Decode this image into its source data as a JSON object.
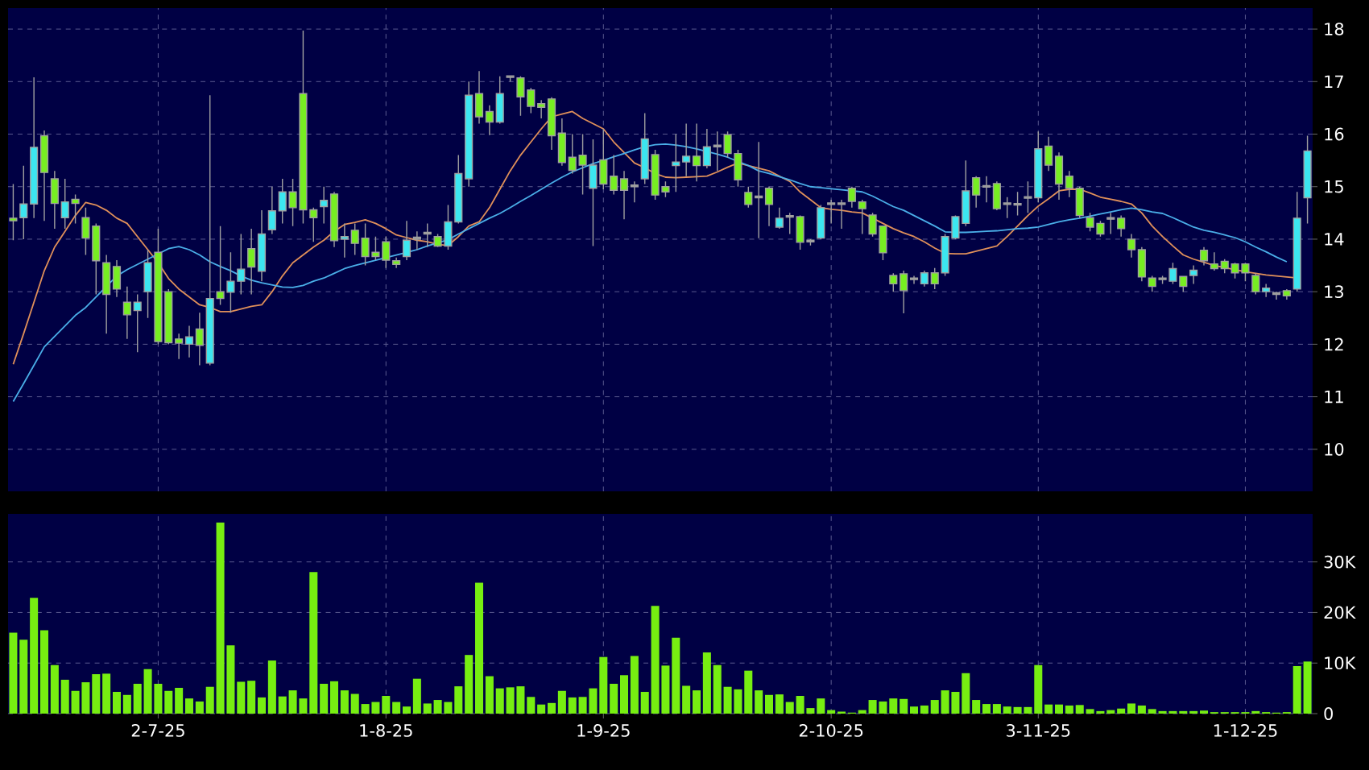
{
  "chart_data": [
    {
      "type": "candlestick",
      "categories": [
        null,
        null,
        null,
        null,
        null,
        null,
        null,
        null,
        null,
        null,
        null,
        null,
        null,
        null,
        null,
        null,
        null,
        null,
        null,
        null,
        null,
        null,
        null,
        null,
        null,
        null,
        null,
        null,
        null,
        null,
        null,
        null,
        null,
        null,
        null,
        null,
        null,
        null,
        null,
        null,
        null,
        null,
        null,
        null,
        null,
        null,
        null,
        null,
        null,
        null,
        null,
        null,
        null,
        null,
        null,
        null,
        null,
        null,
        null,
        null,
        null,
        null,
        null,
        null,
        null,
        null,
        null,
        null,
        null,
        null,
        null,
        null,
        null,
        null,
        null,
        null,
        null,
        null,
        null,
        null,
        null,
        null,
        null,
        null,
        null,
        null,
        null,
        null,
        null,
        null,
        null,
        null,
        null,
        null,
        null,
        null,
        null,
        null,
        null,
        null,
        null,
        null,
        null,
        null,
        null,
        null,
        null,
        null,
        null,
        null,
        null,
        null,
        null,
        null,
        null,
        null,
        null,
        null,
        null,
        null,
        null,
        null,
        null,
        null,
        null,
        null
      ],
      "ohlc": [
        [
          14.4,
          15.05,
          13.98,
          14.35
        ],
        [
          14.41,
          15.4,
          14.0,
          14.67
        ],
        [
          14.67,
          17.08,
          14.4,
          15.75
        ],
        [
          15.97,
          16.07,
          14.35,
          15.27
        ],
        [
          15.15,
          15.3,
          14.2,
          14.68
        ],
        [
          14.41,
          15.15,
          14.2,
          14.71
        ],
        [
          14.76,
          14.85,
          14.3,
          14.68
        ],
        [
          14.41,
          14.6,
          13.7,
          14.02
        ],
        [
          14.25,
          14.3,
          12.95,
          13.59
        ],
        [
          13.55,
          13.7,
          12.2,
          12.95
        ],
        [
          13.48,
          13.6,
          12.9,
          13.05
        ],
        [
          12.8,
          13.1,
          12.1,
          12.56
        ],
        [
          12.64,
          12.95,
          11.85,
          12.8
        ],
        [
          13.0,
          13.8,
          12.5,
          13.55
        ],
        [
          13.75,
          14.2,
          12.0,
          12.05
        ],
        [
          13.0,
          13.05,
          12.0,
          12.03
        ],
        [
          12.1,
          12.2,
          11.72,
          12.02
        ],
        [
          12.0,
          12.35,
          11.75,
          12.14
        ],
        [
          12.29,
          12.6,
          11.6,
          11.98
        ],
        [
          11.64,
          16.74,
          11.6,
          12.87
        ],
        [
          13.0,
          14.25,
          12.75,
          12.87
        ],
        [
          12.99,
          13.75,
          12.6,
          13.2
        ],
        [
          13.2,
          14.1,
          12.95,
          13.43
        ],
        [
          13.82,
          14.2,
          12.95,
          13.47
        ],
        [
          13.39,
          14.55,
          13.2,
          14.1
        ],
        [
          14.18,
          15.0,
          14.1,
          14.54
        ],
        [
          14.54,
          15.15,
          14.3,
          14.9
        ],
        [
          14.9,
          15.15,
          14.25,
          14.6
        ],
        [
          16.77,
          17.97,
          14.3,
          14.56
        ],
        [
          14.56,
          14.6,
          13.95,
          14.41
        ],
        [
          14.62,
          15.0,
          14.3,
          14.74
        ],
        [
          14.86,
          14.9,
          13.85,
          13.97
        ],
        [
          14.0,
          14.3,
          13.65,
          14.05
        ],
        [
          14.17,
          14.3,
          13.7,
          13.92
        ],
        [
          14.02,
          14.3,
          13.5,
          13.67
        ],
        [
          13.75,
          14.05,
          13.6,
          13.67
        ],
        [
          13.95,
          14.05,
          13.45,
          13.6
        ],
        [
          13.59,
          13.65,
          13.45,
          13.52
        ],
        [
          13.67,
          14.35,
          13.6,
          13.98
        ],
        [
          14.0,
          14.15,
          13.8,
          14.04
        ],
        [
          14.1,
          14.3,
          13.85,
          14.13
        ],
        [
          14.05,
          14.1,
          13.85,
          13.87
        ],
        [
          13.87,
          14.65,
          13.8,
          14.33
        ],
        [
          14.33,
          15.6,
          14.3,
          15.25
        ],
        [
          15.15,
          17.0,
          15.0,
          16.74
        ],
        [
          16.77,
          17.2,
          16.2,
          16.33
        ],
        [
          16.43,
          16.55,
          15.98,
          16.23
        ],
        [
          16.23,
          17.1,
          16.2,
          16.77
        ],
        [
          17.08,
          17.12,
          17.0,
          17.11
        ],
        [
          17.07,
          17.1,
          16.35,
          16.71
        ],
        [
          16.84,
          16.88,
          16.4,
          16.53
        ],
        [
          16.58,
          16.65,
          16.3,
          16.51
        ],
        [
          16.67,
          16.7,
          15.7,
          15.97
        ],
        [
          16.02,
          16.3,
          15.4,
          15.46
        ],
        [
          15.56,
          16.0,
          15.25,
          15.31
        ],
        [
          15.6,
          16.0,
          14.85,
          15.41
        ],
        [
          14.97,
          15.9,
          13.87,
          15.41
        ],
        [
          15.51,
          16.1,
          14.95,
          15.05
        ],
        [
          15.2,
          15.6,
          14.85,
          14.93
        ],
        [
          15.15,
          15.3,
          14.38,
          14.93
        ],
        [
          15.0,
          15.1,
          14.7,
          15.03
        ],
        [
          15.15,
          16.4,
          15.05,
          15.91
        ],
        [
          15.61,
          15.7,
          14.75,
          14.84
        ],
        [
          15.0,
          15.1,
          14.8,
          14.9
        ],
        [
          15.4,
          16.0,
          14.9,
          15.47
        ],
        [
          15.47,
          16.2,
          15.2,
          15.58
        ],
        [
          15.58,
          16.2,
          15.1,
          15.4
        ],
        [
          15.4,
          16.1,
          15.35,
          15.76
        ],
        [
          15.76,
          16.05,
          15.3,
          15.79
        ],
        [
          15.99,
          16.05,
          15.55,
          15.63
        ],
        [
          15.63,
          15.7,
          15.0,
          15.13
        ],
        [
          14.89,
          15.0,
          14.6,
          14.66
        ],
        [
          14.79,
          15.85,
          14.02,
          14.82
        ],
        [
          14.97,
          15.0,
          14.25,
          14.66
        ],
        [
          14.23,
          14.6,
          14.2,
          14.4
        ],
        [
          14.42,
          14.5,
          14.1,
          14.45
        ],
        [
          14.43,
          14.45,
          13.8,
          13.94
        ],
        [
          13.95,
          14.0,
          13.88,
          13.98
        ],
        [
          14.02,
          14.65,
          14.0,
          14.6
        ],
        [
          14.66,
          14.75,
          14.3,
          14.69
        ],
        [
          14.66,
          14.75,
          14.2,
          14.69
        ],
        [
          14.97,
          15.0,
          14.6,
          14.72
        ],
        [
          14.71,
          14.75,
          14.1,
          14.58
        ],
        [
          14.46,
          14.5,
          14.05,
          14.1
        ],
        [
          14.25,
          14.25,
          13.6,
          13.74
        ],
        [
          13.31,
          13.35,
          13.0,
          13.15
        ],
        [
          13.34,
          13.4,
          12.59,
          13.02
        ],
        [
          13.23,
          13.3,
          13.15,
          13.26
        ],
        [
          13.15,
          13.4,
          13.1,
          13.36
        ],
        [
          13.36,
          13.45,
          13.05,
          13.15
        ],
        [
          13.36,
          14.1,
          13.3,
          14.05
        ],
        [
          14.02,
          14.45,
          14.0,
          14.43
        ],
        [
          14.3,
          15.5,
          14.25,
          14.92
        ],
        [
          15.17,
          15.2,
          14.6,
          14.84
        ],
        [
          14.99,
          15.2,
          14.7,
          15.02
        ],
        [
          15.06,
          15.1,
          14.55,
          14.58
        ],
        [
          14.66,
          14.8,
          14.4,
          14.69
        ],
        [
          14.65,
          14.9,
          14.45,
          14.68
        ],
        [
          14.78,
          15.1,
          14.5,
          14.81
        ],
        [
          14.79,
          16.05,
          14.7,
          15.72
        ],
        [
          15.77,
          15.95,
          15.3,
          15.41
        ],
        [
          15.58,
          15.65,
          14.75,
          15.05
        ],
        [
          15.2,
          15.3,
          14.8,
          14.97
        ],
        [
          14.97,
          15.0,
          14.4,
          14.45
        ],
        [
          14.41,
          14.5,
          14.15,
          14.23
        ],
        [
          14.3,
          14.35,
          14.05,
          14.1
        ],
        [
          14.38,
          14.5,
          14.1,
          14.41
        ],
        [
          14.4,
          14.45,
          14.05,
          14.2
        ],
        [
          14.0,
          14.1,
          13.65,
          13.8
        ],
        [
          13.8,
          13.85,
          13.2,
          13.28
        ],
        [
          13.26,
          13.3,
          13.0,
          13.1
        ],
        [
          13.23,
          13.3,
          13.15,
          13.26
        ],
        [
          13.2,
          13.55,
          13.15,
          13.44
        ],
        [
          13.29,
          13.3,
          13.0,
          13.1
        ],
        [
          13.31,
          13.5,
          13.15,
          13.41
        ],
        [
          13.79,
          13.85,
          13.5,
          13.59
        ],
        [
          13.53,
          13.75,
          13.4,
          13.44
        ],
        [
          13.58,
          13.62,
          13.35,
          13.44
        ],
        [
          13.53,
          13.55,
          13.25,
          13.36
        ],
        [
          13.53,
          13.55,
          13.2,
          13.36
        ],
        [
          13.31,
          13.35,
          12.95,
          13.0
        ],
        [
          13.0,
          13.15,
          12.9,
          13.07
        ],
        [
          12.95,
          13.0,
          12.85,
          12.98
        ],
        [
          13.02,
          13.05,
          12.85,
          12.92
        ],
        [
          13.05,
          14.9,
          13.0,
          14.4
        ],
        [
          14.79,
          15.97,
          14.3,
          15.68
        ]
      ],
      "colors": [
        "#77ee22",
        "#3ce6f0",
        "#3ce6f0",
        "#77ee22",
        "#77ee22",
        "#3ce6f0",
        "#77ee22",
        "#77ee22",
        "#77ee22",
        "#77ee22",
        "#77ee22",
        "#77ee22",
        "#3ce6f0",
        "#3ce6f0",
        "#77ee22",
        "#77ee22",
        "#77ee22",
        "#3ce6f0",
        "#77ee22",
        "#3ce6f0",
        "#77ee22",
        "#3ce6f0",
        "#3ce6f0",
        "#77ee22",
        "#3ce6f0",
        "#3ce6f0",
        "#3ce6f0",
        "#77ee22",
        "#77ee22",
        "#77ee22",
        "#3ce6f0",
        "#77ee22",
        "#3ce6f0",
        "#77ee22",
        "#77ee22",
        "#77ee22",
        "#77ee22",
        "#77ee22",
        "#3ce6f0",
        "#9a9a9a",
        "#9a9a9a",
        "#77ee22",
        "#3ce6f0",
        "#3ce6f0",
        "#3ce6f0",
        "#77ee22",
        "#77ee22",
        "#3ce6f0",
        "#9a9a9a",
        "#77ee22",
        "#77ee22",
        "#77ee22",
        "#77ee22",
        "#77ee22",
        "#77ee22",
        "#77ee22",
        "#3ce6f0",
        "#77ee22",
        "#77ee22",
        "#77ee22",
        "#9a9a9a",
        "#3ce6f0",
        "#77ee22",
        "#77ee22",
        "#3ce6f0",
        "#3ce6f0",
        "#77ee22",
        "#3ce6f0",
        "#9a9a9a",
        "#77ee22",
        "#77ee22",
        "#77ee22",
        "#9a9a9a",
        "#77ee22",
        "#3ce6f0",
        "#9a9a9a",
        "#77ee22",
        "#9a9a9a",
        "#3ce6f0",
        "#9a9a9a",
        "#9a9a9a",
        "#77ee22",
        "#77ee22",
        "#77ee22",
        "#77ee22",
        "#77ee22",
        "#77ee22",
        "#9a9a9a",
        "#3ce6f0",
        "#77ee22",
        "#3ce6f0",
        "#3ce6f0",
        "#3ce6f0",
        "#77ee22",
        "#9a9a9a",
        "#77ee22",
        "#9a9a9a",
        "#9a9a9a",
        "#9a9a9a",
        "#3ce6f0",
        "#77ee22",
        "#77ee22",
        "#77ee22",
        "#77ee22",
        "#77ee22",
        "#77ee22",
        "#9a9a9a",
        "#77ee22",
        "#77ee22",
        "#77ee22",
        "#77ee22",
        "#9a9a9a",
        "#3ce6f0",
        "#77ee22",
        "#3ce6f0",
        "#77ee22",
        "#77ee22",
        "#77ee22",
        "#77ee22",
        "#77ee22",
        "#77ee22",
        "#3ce6f0",
        "#9a9a9a",
        "#77ee22",
        "#3ce6f0",
        "#3ce6f0"
      ],
      "series": [
        {
          "type": "line",
          "color": "#e0905a",
          "values": [
            11.62,
            12.2,
            12.8,
            13.4,
            13.85,
            14.15,
            14.45,
            14.7,
            14.65,
            14.55,
            14.4,
            14.3,
            14.05,
            13.8,
            13.55,
            13.25,
            13.05,
            12.9,
            12.75,
            12.7,
            12.62,
            12.62,
            12.67,
            12.72,
            12.75,
            13.0,
            13.3,
            13.55,
            13.7,
            13.85,
            13.98,
            14.15,
            14.28,
            14.32,
            14.37,
            14.3,
            14.2,
            14.08,
            14.03,
            13.98,
            13.95,
            13.9,
            13.88,
            14.05,
            14.25,
            14.33,
            14.6,
            14.95,
            15.3,
            15.6,
            15.85,
            16.1,
            16.33,
            16.38,
            16.43,
            16.3,
            16.2,
            16.1,
            15.85,
            15.65,
            15.45,
            15.36,
            15.25,
            15.18,
            15.17,
            15.18,
            15.19,
            15.2,
            15.28,
            15.37,
            15.45,
            15.4,
            15.35,
            15.3,
            15.2,
            15.1,
            14.9,
            14.75,
            14.6,
            14.57,
            14.55,
            14.52,
            14.5,
            14.4,
            14.3,
            14.2,
            14.12,
            14.05,
            13.95,
            13.83,
            13.73,
            13.72,
            13.72,
            13.77,
            13.82,
            13.87,
            14.05,
            14.25,
            14.45,
            14.63,
            14.77,
            14.92,
            14.95,
            14.95,
            14.88,
            14.8,
            14.76,
            14.72,
            14.67,
            14.5,
            14.25,
            14.05,
            13.87,
            13.7,
            13.62,
            13.56,
            13.5,
            13.46,
            13.42,
            13.38,
            13.35,
            13.32,
            13.3,
            13.28,
            13.26,
            null
          ]
        },
        {
          "type": "line",
          "color": "#4aaee8",
          "values": [
            10.91,
            11.25,
            11.6,
            11.95,
            12.15,
            12.35,
            12.55,
            12.7,
            12.9,
            13.1,
            13.3,
            13.42,
            13.52,
            13.62,
            13.72,
            13.82,
            13.86,
            13.8,
            13.7,
            13.57,
            13.48,
            13.4,
            13.3,
            13.22,
            13.17,
            13.13,
            13.09,
            13.08,
            13.12,
            13.2,
            13.26,
            13.35,
            13.44,
            13.5,
            13.55,
            13.6,
            13.65,
            13.7,
            13.75,
            13.8,
            13.87,
            13.93,
            13.99,
            14.1,
            14.2,
            14.3,
            14.4,
            14.49,
            14.6,
            14.72,
            14.83,
            14.95,
            15.07,
            15.18,
            15.28,
            15.36,
            15.44,
            15.5,
            15.57,
            15.63,
            15.7,
            15.76,
            15.8,
            15.81,
            15.79,
            15.76,
            15.72,
            15.67,
            15.62,
            15.56,
            15.48,
            15.4,
            15.3,
            15.25,
            15.19,
            15.13,
            15.06,
            15.0,
            14.98,
            14.96,
            14.94,
            14.92,
            14.9,
            14.82,
            14.72,
            14.62,
            14.55,
            14.45,
            14.35,
            14.25,
            14.14,
            14.13,
            14.13,
            14.14,
            14.15,
            14.16,
            14.18,
            14.2,
            14.21,
            14.23,
            14.28,
            14.33,
            14.37,
            14.4,
            14.44,
            14.48,
            14.52,
            14.56,
            14.59,
            14.56,
            14.52,
            14.49,
            14.41,
            14.32,
            14.23,
            14.17,
            14.13,
            14.08,
            14.03,
            13.95,
            13.85,
            13.76,
            13.66,
            13.57,
            null,
            null
          ]
        }
      ],
      "ylim": [
        9.2,
        18.4
      ],
      "yticks": [
        10,
        11,
        12,
        13,
        14,
        15,
        16,
        17,
        18
      ],
      "grid": true,
      "tick_labels": "y"
    },
    {
      "type": "bar",
      "categories": [
        null,
        null,
        null,
        null,
        null,
        null,
        null,
        null,
        null,
        null,
        null,
        null,
        null,
        null,
        "2-7-25",
        null,
        null,
        null,
        null,
        null,
        null,
        null,
        null,
        null,
        null,
        null,
        null,
        null,
        null,
        null,
        null,
        null,
        null,
        null,
        null,
        null,
        "1-8-25",
        null,
        null,
        null,
        null,
        null,
        null,
        null,
        null,
        null,
        null,
        null,
        null,
        null,
        null,
        null,
        null,
        null,
        null,
        null,
        null,
        "1-9-25",
        null,
        null,
        null,
        null,
        null,
        null,
        null,
        null,
        null,
        null,
        null,
        null,
        null,
        null,
        null,
        null,
        null,
        null,
        null,
        null,
        null,
        "2-10-25",
        null,
        null,
        null,
        null,
        null,
        null,
        null,
        null,
        null,
        null,
        null,
        null,
        null,
        null,
        null,
        null,
        null,
        null,
        null,
        "3-11-25",
        null,
        null,
        null,
        null,
        null,
        null,
        null,
        null,
        null,
        null,
        null,
        null,
        null,
        null,
        null,
        null,
        null,
        null,
        null,
        "1-12-25",
        null,
        null,
        null,
        null,
        null,
        null
      ],
      "values": [
        16000,
        14600,
        22900,
        16500,
        9600,
        6700,
        4500,
        6200,
        7800,
        7900,
        4300,
        3700,
        5900,
        8800,
        5900,
        4500,
        5100,
        3000,
        2400,
        5300,
        37800,
        13500,
        6300,
        6500,
        3200,
        10500,
        3400,
        4600,
        3000,
        28000,
        5900,
        6400,
        4600,
        3900,
        1900,
        2300,
        3500,
        2300,
        1400,
        6900,
        2000,
        2700,
        2300,
        5400,
        11600,
        25900,
        7400,
        5000,
        5200,
        5400,
        3300,
        1800,
        2100,
        4500,
        3200,
        3300,
        5000,
        11200,
        5900,
        7600,
        11400,
        4300,
        21300,
        9500,
        15000,
        5500,
        4600,
        12100,
        9600,
        5300,
        4800,
        8500,
        4600,
        3700,
        3800,
        2300,
        3500,
        1100,
        3000,
        700,
        400,
        200,
        700,
        2700,
        2400,
        3000,
        2900,
        1400,
        1600,
        2700,
        4600,
        4300,
        8000,
        2700,
        1900,
        1900,
        1400,
        1300,
        1300,
        9600,
        1800,
        1800,
        1600,
        1700,
        900,
        500,
        700,
        1000,
        2000,
        1600,
        900,
        500,
        500,
        500,
        500,
        600,
        300,
        300,
        300,
        300,
        500,
        300,
        200,
        300,
        9400,
        10300
      ],
      "color": "#77ee11",
      "ylim": [
        0,
        39500
      ],
      "yticks": [
        0,
        {
          "value": 10000,
          "label": "10K"
        },
        {
          "value": 20000,
          "label": "20K"
        },
        {
          "value": 30000,
          "label": "30K"
        }
      ],
      "grid": true
    }
  ]
}
